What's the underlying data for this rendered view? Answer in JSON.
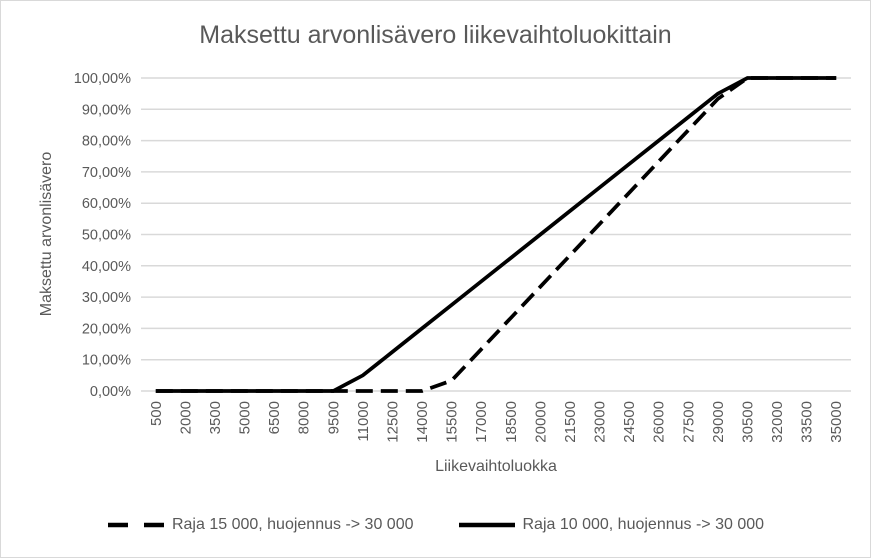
{
  "chart_data": {
    "type": "line",
    "title": "Maksettu arvonlisävero liikevaihtoluokittain",
    "xlabel": "Liikevaihtoluokka",
    "ylabel": "Maksettu arvonlisävero",
    "categories": [
      500,
      2000,
      3500,
      5000,
      6500,
      8000,
      9500,
      11000,
      12500,
      14000,
      15500,
      17000,
      18500,
      20000,
      21500,
      23000,
      24500,
      26000,
      27500,
      29000,
      30500,
      32000,
      33500,
      35000
    ],
    "series": [
      {
        "name": "Raja 15 000, huojennus -> 30 000",
        "style": "dashed",
        "color": "#000000",
        "values": [
          0,
          0,
          0,
          0,
          0,
          0,
          0,
          0,
          0,
          0,
          3.33,
          13.33,
          23.33,
          33.33,
          43.33,
          53.33,
          63.33,
          73.33,
          83.33,
          93.33,
          100,
          100,
          100,
          100
        ]
      },
      {
        "name": "Raja 10 000, huojennus -> 30 000",
        "style": "solid",
        "color": "#000000",
        "values": [
          0,
          0,
          0,
          0,
          0,
          0,
          0,
          5,
          12.5,
          20,
          27.5,
          35,
          42.5,
          50,
          57.5,
          65,
          72.5,
          80,
          87.5,
          95,
          100,
          100,
          100,
          100
        ]
      }
    ],
    "ylim": [
      0,
      100
    ],
    "ytick_step": 10,
    "ytick_labels": [
      "0,00%",
      "10,00%",
      "20,00%",
      "30,00%",
      "40,00%",
      "50,00%",
      "60,00%",
      "70,00%",
      "80,00%",
      "90,00%",
      "100,00%"
    ],
    "grid": true,
    "legend_position": "bottom",
    "colors": {
      "text": "#595959",
      "gridline": "#D9D9D9",
      "background": "#FFFFFF"
    }
  }
}
